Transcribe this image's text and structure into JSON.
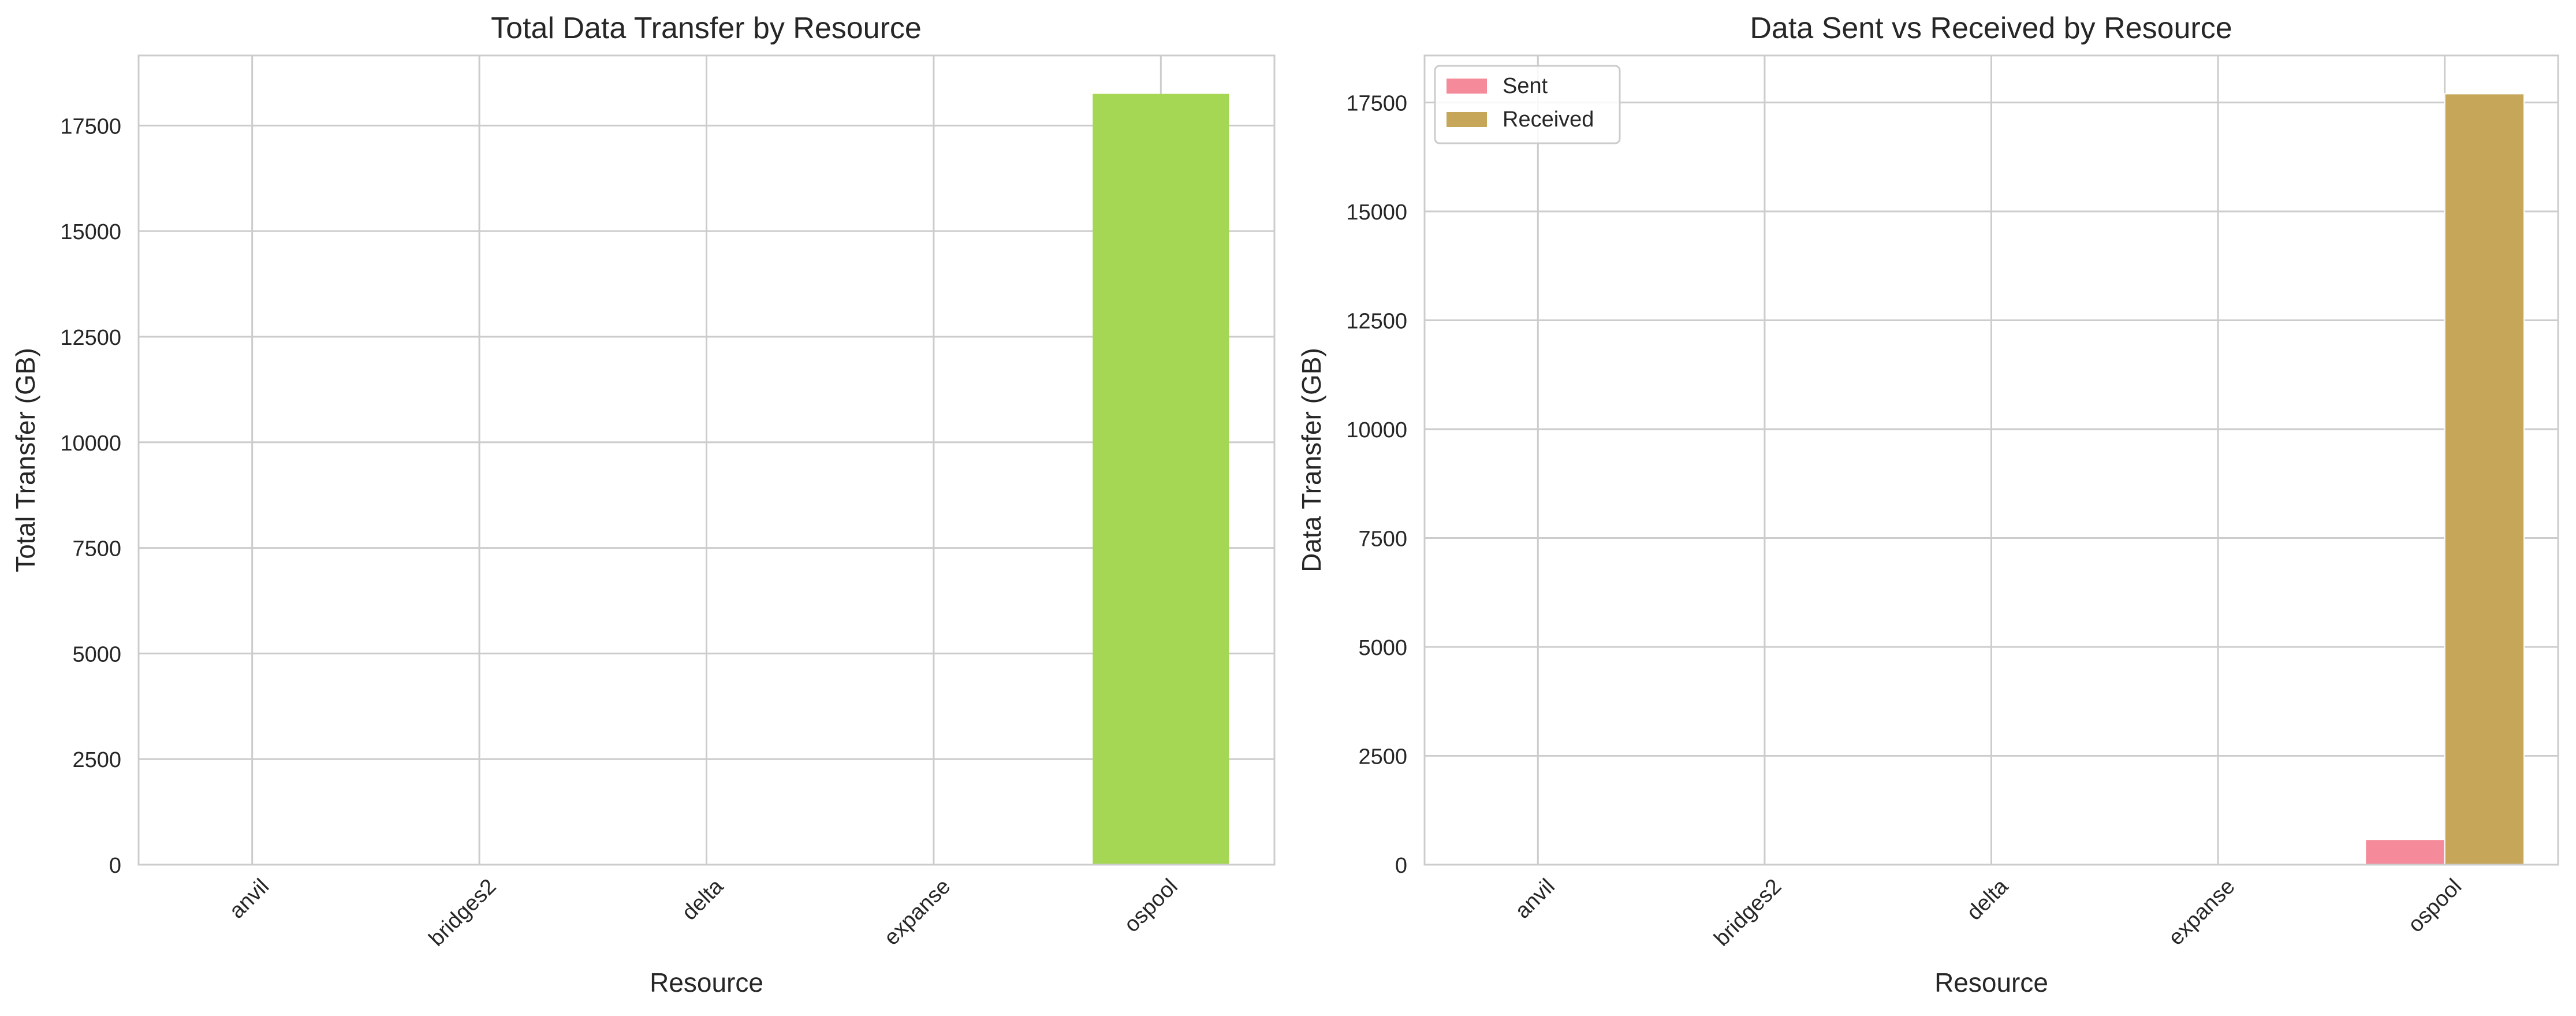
{
  "chart_data": [
    {
      "type": "bar",
      "title": "Total Data Transfer by Resource",
      "xlabel": "Resource",
      "ylabel": "Total Transfer (GB)",
      "categories": [
        "anvil",
        "bridges2",
        "delta",
        "expanse",
        "ospool"
      ],
      "values": [
        0,
        0,
        0,
        0,
        18250
      ],
      "ylim": [
        0,
        19160
      ],
      "yticks": [
        0,
        2500,
        5000,
        7500,
        10000,
        12500,
        15000,
        17500
      ],
      "bar_colors": [
        "#f77189",
        "#c69d31",
        "#6ab530",
        "#3ba3ec",
        "#a5d754"
      ],
      "grid": true
    },
    {
      "type": "bar",
      "title": "Data Sent vs Received by Resource",
      "xlabel": "Resource",
      "ylabel": "Data Transfer (GB)",
      "categories": [
        "anvil",
        "bridges2",
        "delta",
        "expanse",
        "ospool"
      ],
      "series": [
        {
          "name": "Sent",
          "values": [
            0,
            0,
            0,
            0,
            580
          ],
          "color": "#f48a9a"
        },
        {
          "name": "Received",
          "values": [
            0,
            0,
            0,
            0,
            17700
          ],
          "color": "#c6a75a"
        }
      ],
      "ylim": [
        0,
        18580
      ],
      "yticks": [
        0,
        2500,
        5000,
        7500,
        10000,
        12500,
        15000,
        17500
      ],
      "legend": "top-left",
      "grid": true
    }
  ]
}
